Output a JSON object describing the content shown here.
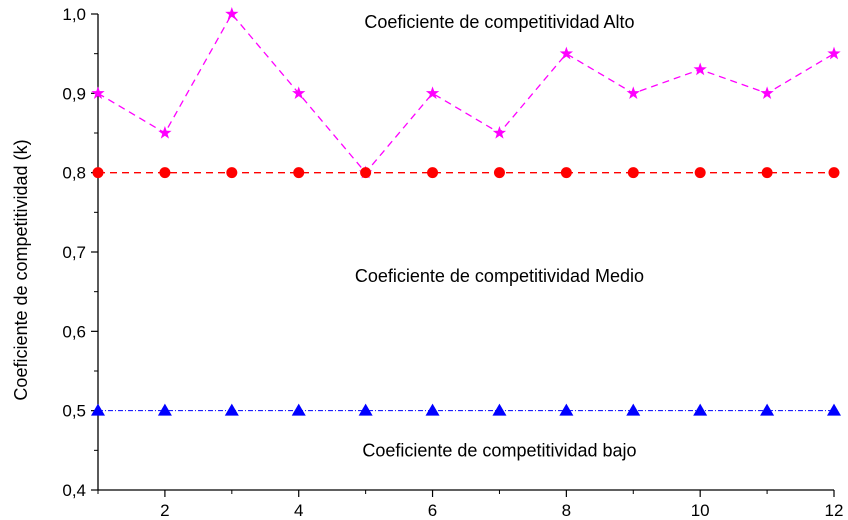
{
  "chart_data": {
    "type": "line",
    "title": "",
    "xlabel": "",
    "ylabel": "Coeficiente de competitividad (k)",
    "xlim": [
      1,
      12
    ],
    "ylim": [
      0.4,
      1.0
    ],
    "x_ticks": [
      2,
      4,
      6,
      8,
      10,
      12
    ],
    "x_tick_labels": [
      "2",
      "4",
      "6",
      "8",
      "10",
      "12"
    ],
    "y_ticks": [
      0.4,
      0.5,
      0.6,
      0.7,
      0.8,
      0.9,
      1.0
    ],
    "y_tick_labels": [
      "0,4",
      "0,5",
      "0,6",
      "0,7",
      "0,8",
      "0,9",
      "1,0"
    ],
    "grid": false,
    "x": [
      1,
      2,
      3,
      4,
      5,
      6,
      7,
      8,
      9,
      10,
      11,
      12
    ],
    "series": [
      {
        "values": [
          0.9,
          0.85,
          1.0,
          0.9,
          0.8,
          0.9,
          0.85,
          0.95,
          0.9,
          0.93,
          0.9,
          0.95
        ],
        "color": "#ff00ff",
        "marker": "star",
        "dash": "dashed"
      },
      {
        "values": [
          0.8,
          0.8,
          0.8,
          0.8,
          0.8,
          0.8,
          0.8,
          0.8,
          0.8,
          0.8,
          0.8,
          0.8
        ],
        "color": "#ff0000",
        "marker": "circle",
        "dash": "dashed"
      },
      {
        "values": [
          0.5,
          0.5,
          0.5,
          0.5,
          0.5,
          0.5,
          0.5,
          0.5,
          0.5,
          0.5,
          0.5,
          0.5
        ],
        "color": "#0000ff",
        "marker": "triangle",
        "dash": "dash-dot"
      }
    ],
    "annotations": [
      {
        "text": "Coeficiente de competitividad Alto",
        "x": 7,
        "y": 0.99
      },
      {
        "text": "Coeficiente de competitividad Medio",
        "x": 7,
        "y": 0.67
      },
      {
        "text": "Coeficiente de competitividad bajo",
        "x": 7,
        "y": 0.45
      }
    ]
  }
}
